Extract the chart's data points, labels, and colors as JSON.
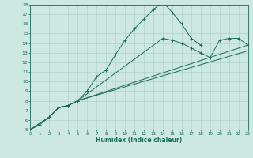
{
  "xlabel": "Humidex (Indice chaleur)",
  "xlim": [
    0,
    23
  ],
  "ylim": [
    5,
    18
  ],
  "xticks": [
    0,
    1,
    2,
    3,
    4,
    5,
    6,
    7,
    8,
    9,
    10,
    11,
    12,
    13,
    14,
    15,
    16,
    17,
    18,
    19,
    20,
    21,
    22,
    23
  ],
  "yticks": [
    5,
    6,
    7,
    8,
    9,
    10,
    11,
    12,
    13,
    14,
    15,
    16,
    17,
    18
  ],
  "bg_color": "#cce8e0",
  "line_color": "#1a6b5a",
  "grid_color": "#aaccc4",
  "series": [
    {
      "x": [
        0,
        1,
        2,
        3,
        4,
        5,
        6,
        7,
        8,
        9,
        10,
        11,
        12,
        13,
        14,
        15,
        16,
        17,
        18
      ],
      "y": [
        5,
        5.5,
        6.3,
        7.3,
        7.5,
        8.0,
        9.0,
        10.5,
        11.2,
        12.8,
        14.3,
        15.5,
        16.5,
        17.5,
        18.3,
        17.2,
        16.0,
        14.5,
        13.8
      ],
      "marker": "+"
    },
    {
      "x": [
        0,
        2,
        3,
        4,
        5,
        14,
        15,
        16,
        17,
        18,
        19,
        20,
        21,
        22,
        23
      ],
      "y": [
        5,
        6.3,
        7.3,
        7.5,
        8.0,
        14.5,
        14.3,
        14.0,
        13.5,
        13.0,
        12.5,
        14.3,
        14.5,
        14.5,
        13.8
      ],
      "marker": "+"
    },
    {
      "x": [
        0,
        2,
        3,
        4,
        5,
        23
      ],
      "y": [
        5,
        6.3,
        7.3,
        7.5,
        8.0,
        13.2
      ],
      "marker": null
    },
    {
      "x": [
        0,
        2,
        3,
        4,
        5,
        23
      ],
      "y": [
        5,
        6.3,
        7.3,
        7.5,
        8.0,
        13.8
      ],
      "marker": null
    }
  ]
}
